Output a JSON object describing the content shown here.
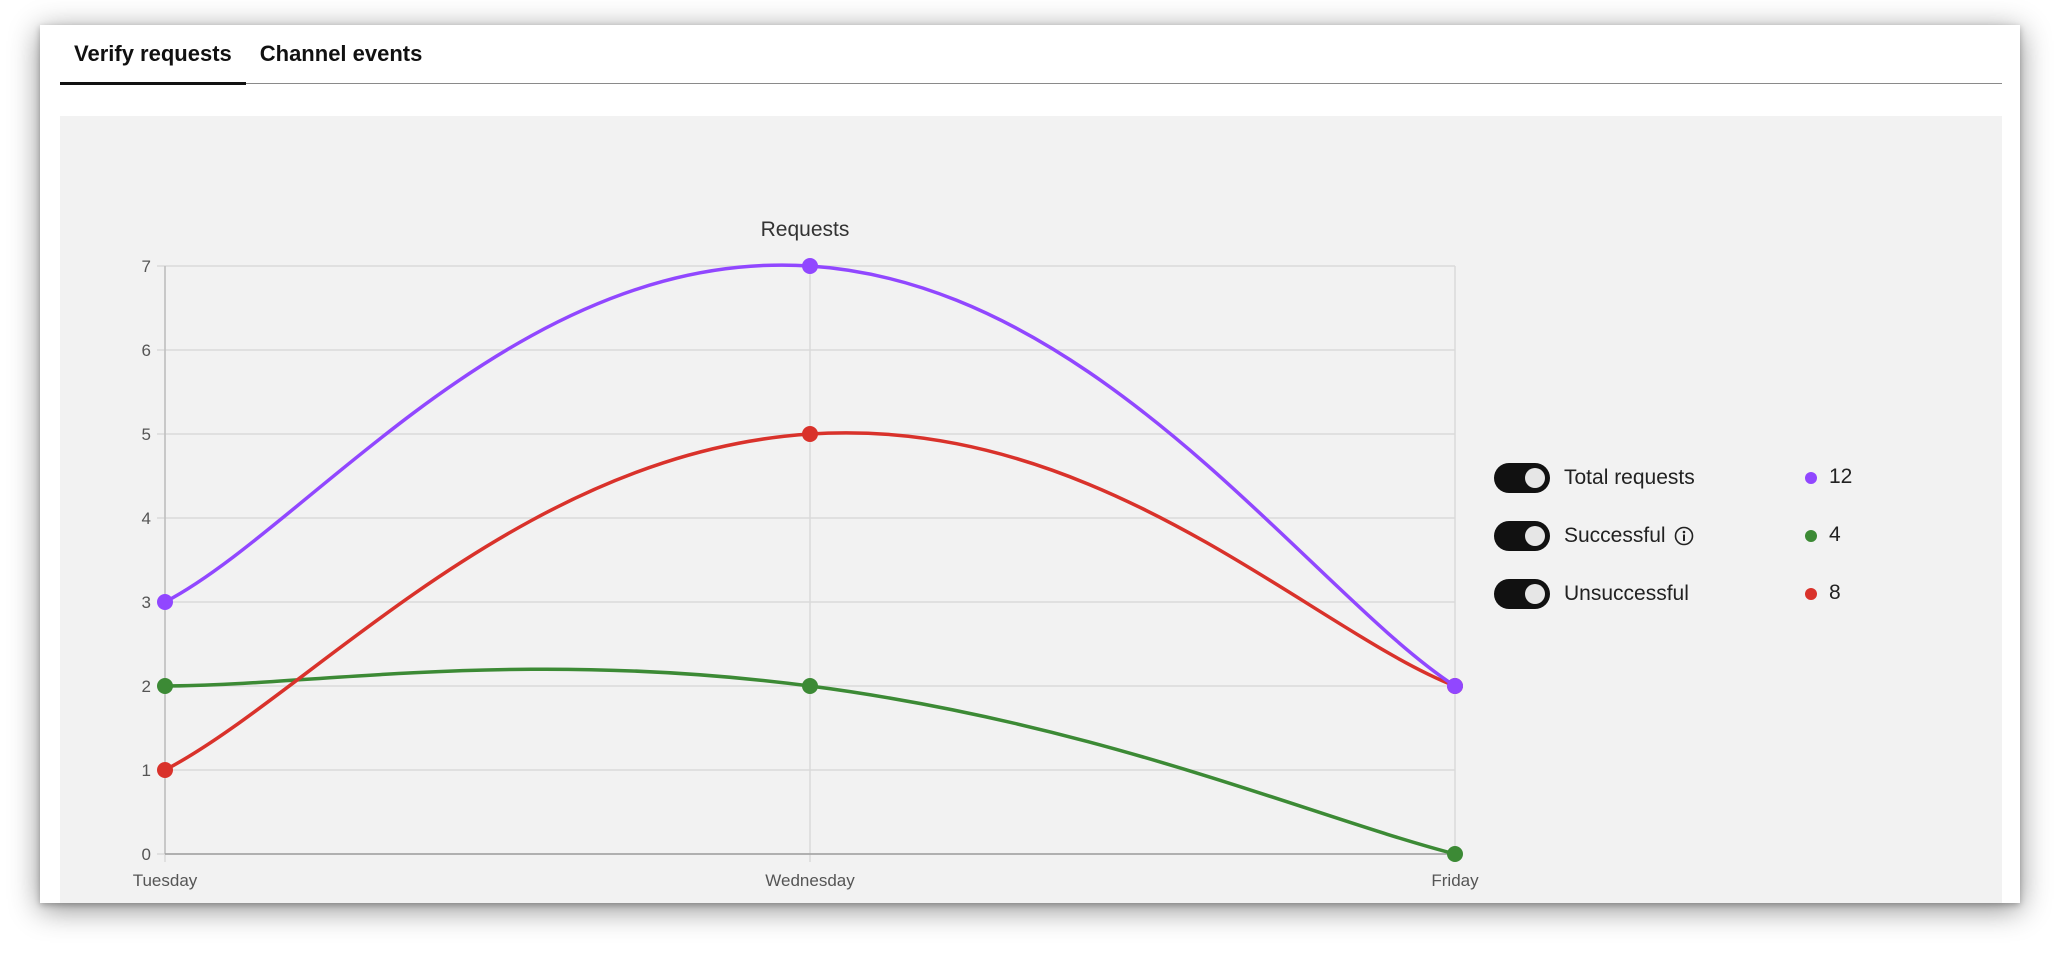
{
  "tabs": [
    {
      "label": "Verify requests",
      "active": true
    },
    {
      "label": "Channel events",
      "active": false
    }
  ],
  "chart_data": {
    "type": "line",
    "title": "Requests",
    "categories": [
      "Tuesday",
      "Wednesday",
      "Friday"
    ],
    "ylim": [
      0,
      7
    ],
    "yticks": [
      "0",
      "1",
      "2",
      "3",
      "4",
      "5",
      "6",
      "7"
    ],
    "grid": true,
    "legend_position": "right",
    "series": [
      {
        "name": "Total requests",
        "values": [
          3,
          7,
          2
        ],
        "color": "#9147ff",
        "total": "12"
      },
      {
        "name": "Successful",
        "values": [
          2,
          2,
          0
        ],
        "color": "#3c8a35",
        "total": "4",
        "info": true
      },
      {
        "name": "Unsuccessful",
        "values": [
          1,
          5,
          2
        ],
        "color": "#d9322b",
        "total": "8"
      }
    ]
  },
  "icons": {
    "info": "info-icon",
    "toggle": "toggle-switch"
  }
}
